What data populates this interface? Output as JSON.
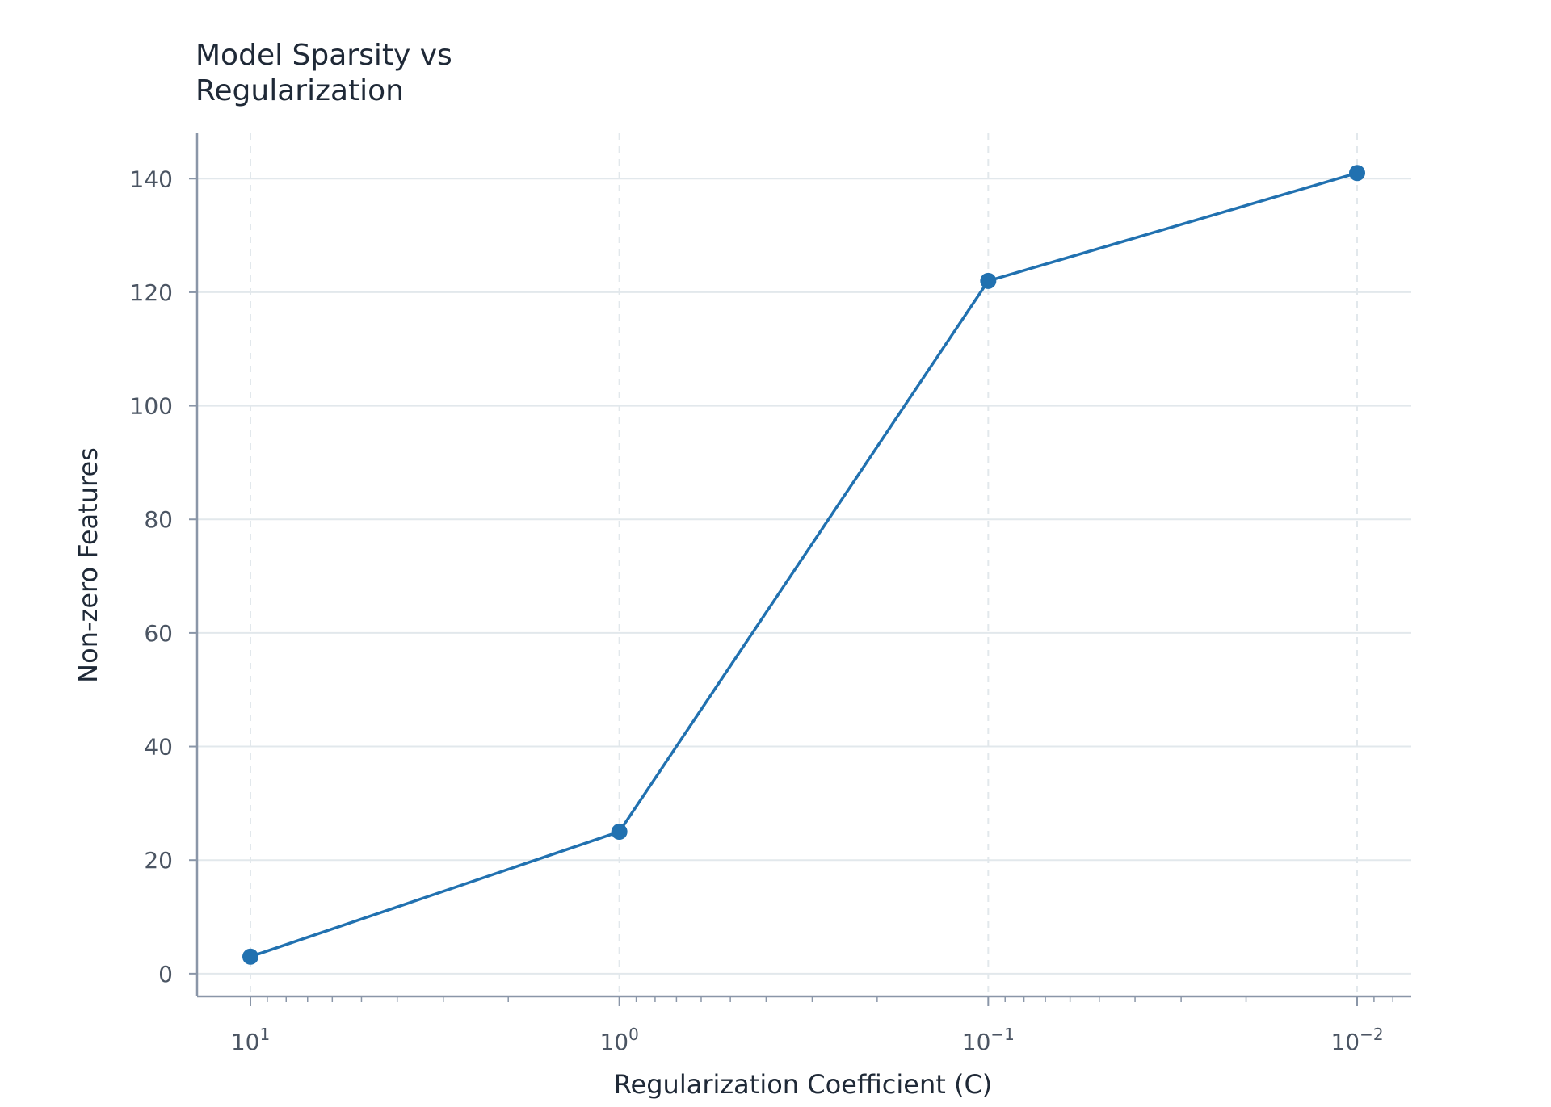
{
  "chart_data": {
    "type": "line",
    "title_lines": [
      "Model Sparsity vs",
      "Regularization"
    ],
    "xlabel": "Regularization Coefficient (C)",
    "ylabel": "Non-zero Features",
    "x_scale": "log",
    "x_axis_inverted": true,
    "x": [
      10,
      1,
      0.1,
      0.01
    ],
    "x_tick_labels": [
      {
        "base": "10",
        "exp": "1"
      },
      {
        "base": "10",
        "exp": "0"
      },
      {
        "base": "10",
        "exp": "−1"
      },
      {
        "base": "10",
        "exp": "−2"
      }
    ],
    "y_ticks": [
      0,
      20,
      40,
      60,
      80,
      100,
      120,
      140
    ],
    "ylim": [
      -4,
      148
    ],
    "grid": true,
    "series": [
      {
        "values": [
          3,
          25,
          122,
          141
        ],
        "color": "#2171b0"
      }
    ]
  },
  "colors": {
    "line": "#2171b0",
    "grid": "#e2e8ec",
    "axis": "#8a96a8"
  }
}
